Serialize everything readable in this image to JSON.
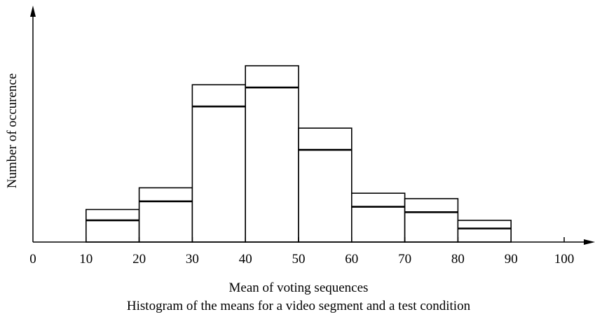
{
  "chart_data": {
    "type": "bar",
    "chart_kind": "histogram",
    "bins": [
      [
        10,
        20
      ],
      [
        20,
        30
      ],
      [
        30,
        40
      ],
      [
        40,
        50
      ],
      [
        50,
        60
      ],
      [
        60,
        70
      ],
      [
        70,
        80
      ],
      [
        80,
        90
      ]
    ],
    "series": [
      {
        "values": [
          12,
          20,
          58,
          65,
          42,
          18,
          16,
          8
        ]
      },
      {
        "values": [
          8,
          15,
          50,
          57,
          34,
          13,
          11,
          5
        ]
      }
    ],
    "xlim": [
      0,
      100
    ],
    "x_ticks": [
      "0",
      "10",
      "20",
      "30",
      "40",
      "50",
      "60",
      "70",
      "80",
      "90",
      "100"
    ],
    "y_ticks": [],
    "grid": false,
    "legend": "none",
    "xlabel": "Mean of voting sequences",
    "ylabel": "Number of occurence",
    "caption": "Histogram of the means for a video segment and a test condition"
  },
  "colors": {
    "line": "#000000",
    "bar_fill": "#ffffff",
    "background": "#ffffff"
  }
}
